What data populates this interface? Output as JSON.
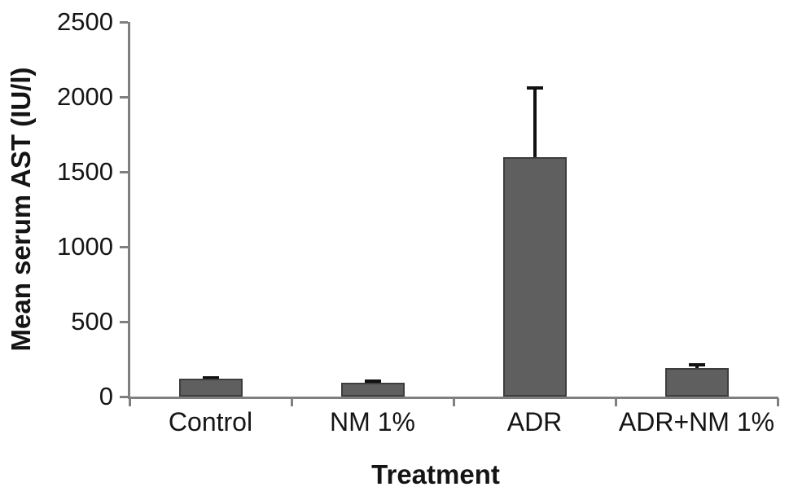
{
  "chart_data": {
    "type": "bar",
    "title": "",
    "xlabel": "Treatment",
    "ylabel": "Mean serum AST (IU/l)",
    "categories": [
      "Control",
      "NM 1%",
      "ADR",
      "ADR+NM 1%"
    ],
    "values": [
      120,
      95,
      1600,
      190
    ],
    "errors_upper": [
      15,
      20,
      470,
      35
    ],
    "ylim": [
      0,
      2500
    ],
    "yticks": [
      0,
      500,
      1000,
      1500,
      2000,
      2500
    ],
    "grid": false,
    "legend_position": "none",
    "colors": {
      "bar_fill": "#5f5f5f",
      "bar_border": "#3d3d3d",
      "axis": "#7f7f7f",
      "error_bar": "#111111",
      "text": "#151515",
      "background": "#ffffff"
    }
  }
}
